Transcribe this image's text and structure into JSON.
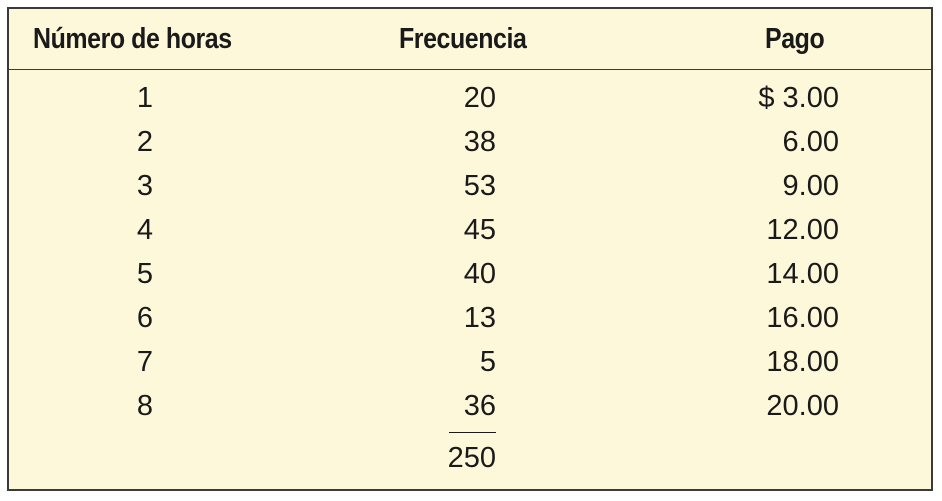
{
  "table": {
    "headers": {
      "hours": "Número de horas",
      "frequency": "Frecuencia",
      "pay": "Pago"
    },
    "rows": [
      {
        "hours": "1",
        "frequency": "20",
        "pay": "$ 3.00"
      },
      {
        "hours": "2",
        "frequency": "38",
        "pay": "6.00"
      },
      {
        "hours": "3",
        "frequency": "53",
        "pay": "9.00"
      },
      {
        "hours": "4",
        "frequency": "45",
        "pay": "12.00"
      },
      {
        "hours": "5",
        "frequency": "40",
        "pay": "14.00"
      },
      {
        "hours": "6",
        "frequency": "13",
        "pay": "16.00"
      },
      {
        "hours": "7",
        "frequency": "5",
        "pay": "18.00"
      },
      {
        "hours": "8",
        "frequency": "36",
        "pay": "20.00"
      }
    ],
    "total_frequency": "250"
  },
  "colors": {
    "background": "#fdf8d9",
    "border": "#3a3a3a",
    "text": "#1a1a1a"
  }
}
